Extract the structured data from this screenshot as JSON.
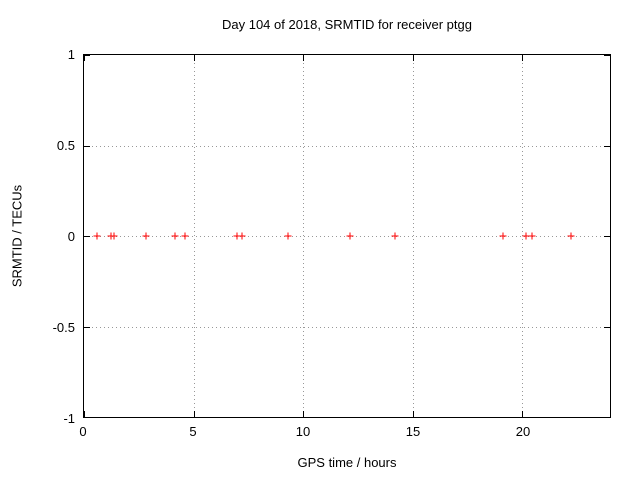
{
  "chart_data": {
    "type": "scatter",
    "title": "Day 104 of 2018, SRMTID for receiver ptgg",
    "xlabel": "GPS time / hours",
    "ylabel": "SRMTID / TECUs",
    "xlim": [
      0,
      24
    ],
    "ylim": [
      -1,
      1
    ],
    "x_ticks": [
      0,
      5,
      10,
      15,
      20
    ],
    "x_tick_labels": [
      "0",
      "5",
      "10",
      "15",
      "20"
    ],
    "y_ticks": [
      1,
      0.5,
      0,
      -0.5,
      -1
    ],
    "y_tick_labels": [
      "1",
      "0.5",
      "0",
      "-0.5",
      "-1"
    ],
    "grid": true,
    "legend": "none",
    "marker": "plus",
    "marker_color": "#ff0000",
    "grid_color": "#989898",
    "border_color": "#000000",
    "series": [
      {
        "name": "SRMTID",
        "x": [
          0.6,
          1.25,
          1.35,
          2.85,
          4.15,
          4.6,
          7.0,
          7.2,
          9.3,
          12.15,
          14.2,
          19.1,
          20.15,
          20.45,
          22.2
        ],
        "y": [
          0,
          0,
          0,
          0,
          0,
          0,
          0,
          0,
          0,
          0,
          0,
          0,
          0,
          0,
          0
        ]
      }
    ]
  }
}
